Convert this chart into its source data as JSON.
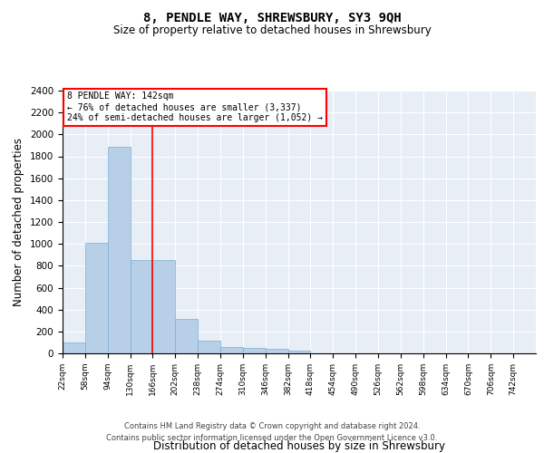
{
  "title": "8, PENDLE WAY, SHREWSBURY, SY3 9QH",
  "subtitle": "Size of property relative to detached houses in Shrewsbury",
  "xlabel": "Distribution of detached houses by size in Shrewsbury",
  "ylabel": "Number of detached properties",
  "bar_values": [
    100,
    1010,
    1890,
    855,
    855,
    315,
    120,
    60,
    50,
    40,
    25,
    0,
    0,
    0,
    0,
    0,
    0,
    0,
    0,
    0
  ],
  "bar_labels": [
    "22sqm",
    "58sqm",
    "94sqm",
    "130sqm",
    "166sqm",
    "202sqm",
    "238sqm",
    "274sqm",
    "310sqm",
    "346sqm",
    "382sqm",
    "418sqm",
    "454sqm",
    "490sqm",
    "526sqm",
    "562sqm",
    "598sqm",
    "634sqm",
    "670sqm",
    "706sqm",
    "742sqm"
  ],
  "bar_color": "#b8cfe8",
  "bar_edge_color": "#7aaed4",
  "bg_color": "#e8eef6",
  "grid_color": "#ffffff",
  "vline_x": 3.5,
  "vline_color": "red",
  "annotation_title": "8 PENDLE WAY: 142sqm",
  "annotation_line1": "← 76% of detached houses are smaller (3,337)",
  "annotation_line2": "24% of semi-detached houses are larger (1,052) →",
  "annotation_box_color": "red",
  "ylim": [
    0,
    2400
  ],
  "yticks": [
    0,
    200,
    400,
    600,
    800,
    1000,
    1200,
    1400,
    1600,
    1800,
    2000,
    2200,
    2400
  ],
  "footer_line1": "Contains HM Land Registry data © Crown copyright and database right 2024.",
  "footer_line2": "Contains public sector information licensed under the Open Government Licence v3.0."
}
